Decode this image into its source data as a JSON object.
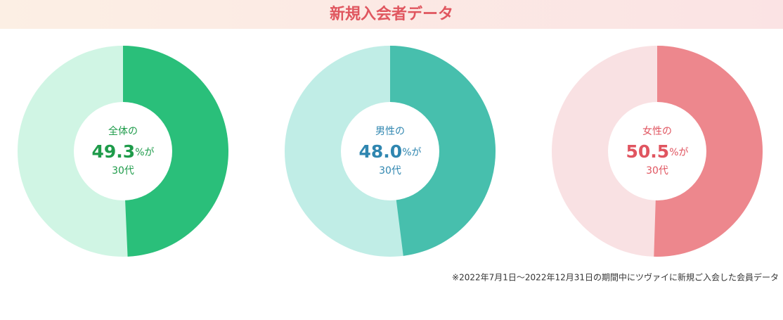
{
  "title": "新規入会者データ",
  "footnote": "※2022年7月1日〜2022年12月31日の期間中にツヴァイに新規ご入会した会員データ",
  "chart_data": [
    {
      "type": "pie",
      "subtitle": "全体の",
      "categories": [
        "30代"
      ],
      "values": [
        49.3
      ],
      "suffix": "%が",
      "color": "#2abf7a",
      "track_color": "#d0f5e4",
      "text_color": "#1e9b4a"
    },
    {
      "type": "pie",
      "subtitle": "男性の",
      "categories": [
        "30代"
      ],
      "values": [
        48.0
      ],
      "value_labels": [
        "48.0"
      ],
      "suffix": "%が",
      "color": "#47bfad",
      "track_color": "#c0ede6",
      "text_color": "#2f86b0"
    },
    {
      "type": "pie",
      "subtitle": "女性の",
      "categories": [
        "30代"
      ],
      "values": [
        50.5
      ],
      "suffix": "%が",
      "color": "#ed878d",
      "track_color": "#f9e1e3",
      "text_color": "#e05560"
    }
  ]
}
